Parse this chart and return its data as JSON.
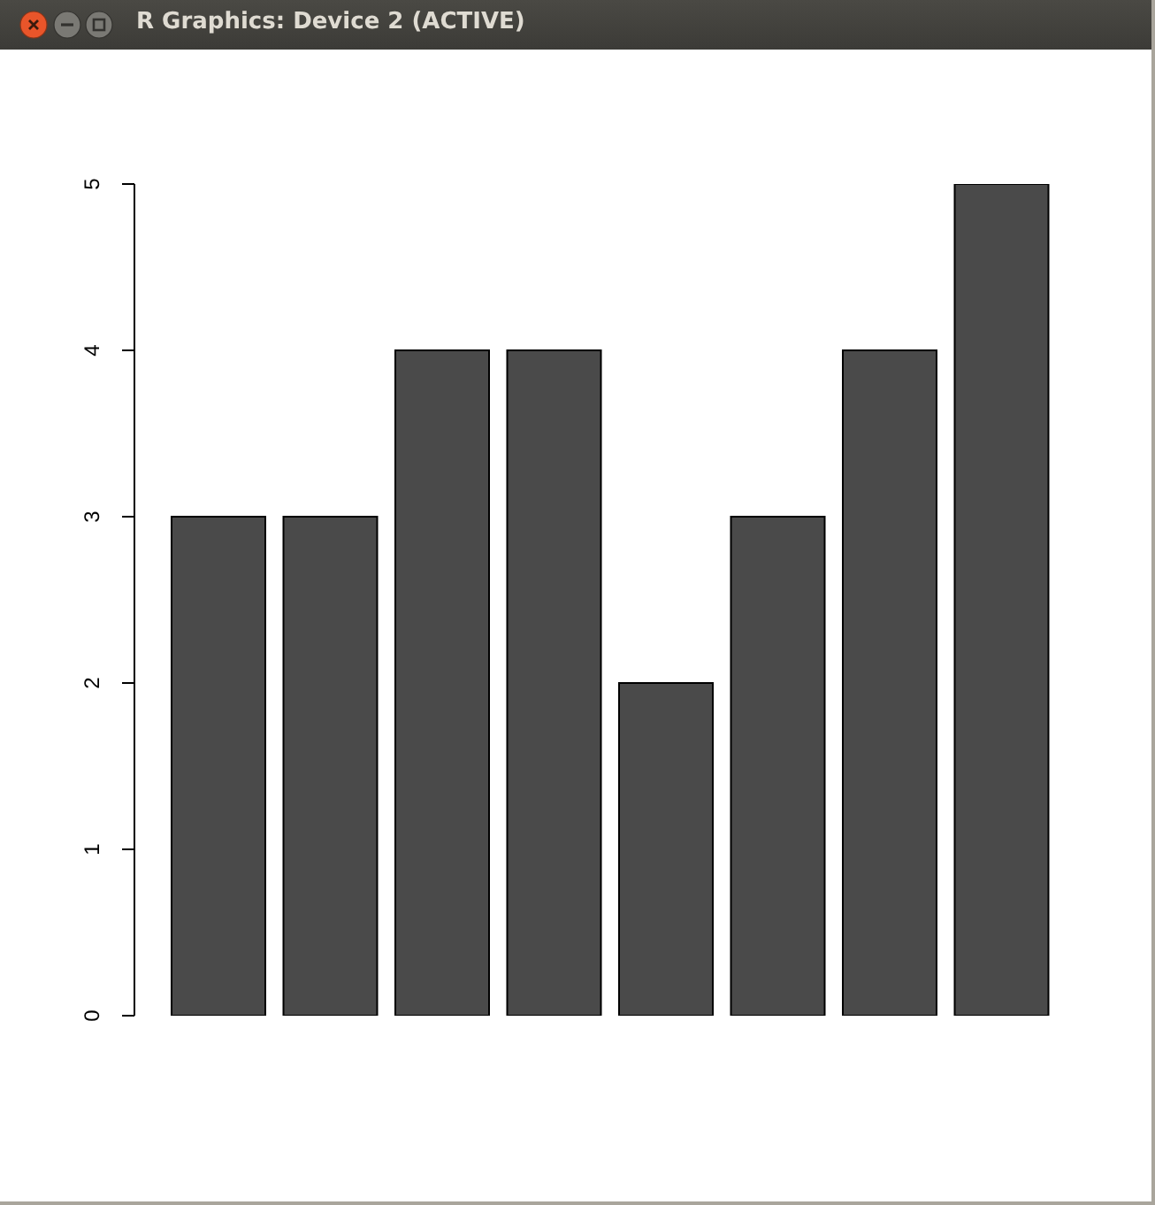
{
  "chart_data": {
    "type": "bar",
    "title": "R Graphics: Device 2 (ACTIVE)",
    "categories": [
      null,
      null,
      null,
      null,
      null,
      null,
      null,
      null
    ],
    "values": [
      3,
      3,
      4,
      4,
      2,
      3,
      4,
      5
    ],
    "color": "#4a4a4a",
    "ylim": [
      0,
      5
    ],
    "yticks": [
      0,
      1,
      2,
      3,
      4,
      5
    ],
    "tick_labels": "y"
  }
}
